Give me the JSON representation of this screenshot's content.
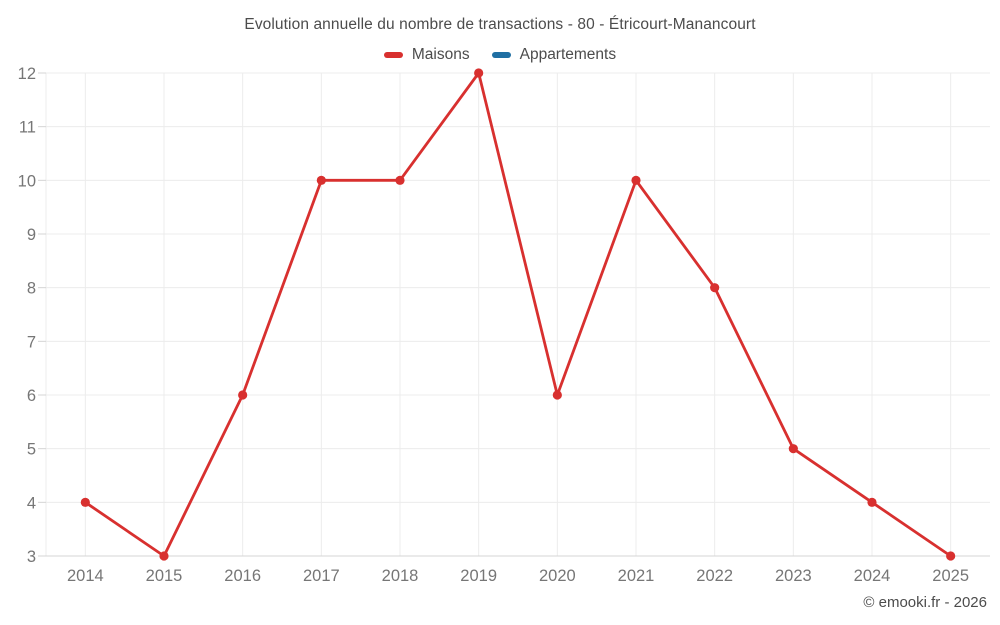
{
  "attribution": "© emooki.fr - 2026",
  "chart_data": {
    "type": "line",
    "title": "Evolution annuelle du nombre de transactions - 80 - Étricourt-Manancourt",
    "categories": [
      "2014",
      "2015",
      "2016",
      "2017",
      "2018",
      "2019",
      "2020",
      "2021",
      "2022",
      "2023",
      "2024",
      "2025"
    ],
    "series": [
      {
        "name": "Maisons",
        "color": "#d8302f",
        "values": [
          4,
          3,
          6,
          10,
          10,
          12,
          6,
          10,
          8,
          5,
          4,
          3
        ]
      },
      {
        "name": "Appartements",
        "color": "#1f6fa3",
        "values": []
      }
    ],
    "xlabel": "",
    "ylabel": "",
    "ylim": [
      3,
      12
    ],
    "ytick_step": 1,
    "grid": true,
    "legend_position": "top",
    "marker": "circle",
    "colors": {
      "gridline": "#ececec",
      "axis_line": "#d4d4d4",
      "tick_label": "#767676"
    }
  }
}
